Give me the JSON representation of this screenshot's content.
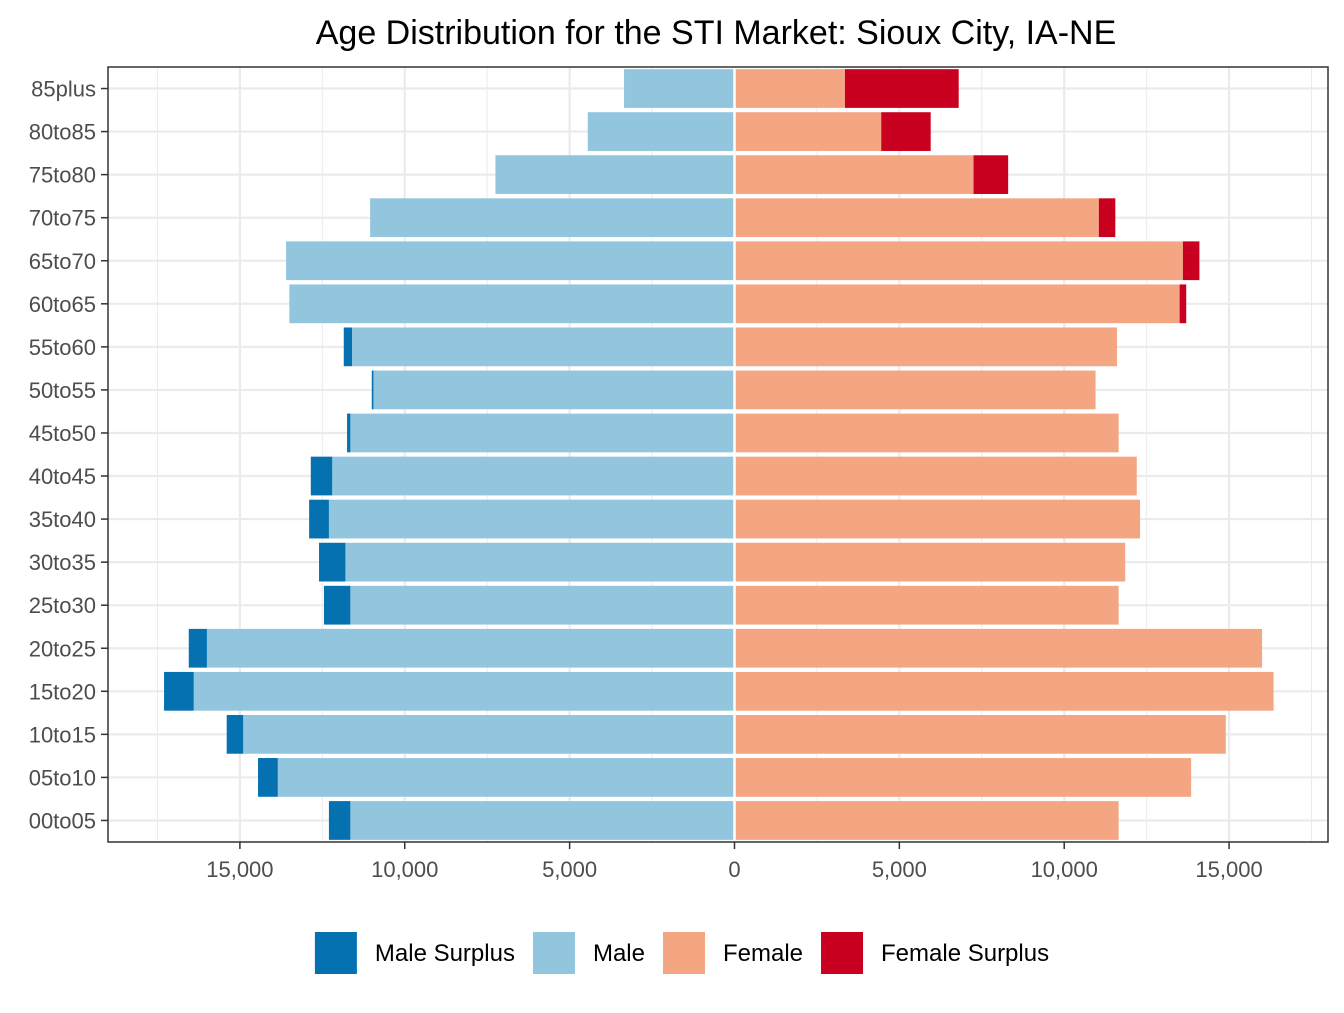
{
  "chart_data": {
    "type": "bar",
    "orientation": "horizontal",
    "title": "Age Distribution for the STI Market: Sioux City, IA-NE",
    "xlabel": "",
    "ylabel": "",
    "xlim": [
      -19000,
      18000
    ],
    "x_ticks": [
      -15000,
      -10000,
      -5000,
      0,
      5000,
      10000,
      15000
    ],
    "x_tick_labels": [
      "15,000",
      "10,000",
      "5,000",
      "0",
      "5,000",
      "10,000",
      "15,000"
    ],
    "grid": true,
    "legend_position": "bottom",
    "categories": [
      "00to05",
      "05to10",
      "10to15",
      "15to20",
      "20to25",
      "25to30",
      "30to35",
      "35to40",
      "40to45",
      "45to50",
      "50to55",
      "55to60",
      "60to65",
      "65to70",
      "70to75",
      "75to80",
      "80to85",
      "85plus"
    ],
    "series": [
      {
        "name": "Male Surplus",
        "color": "#0571b0",
        "side": "left",
        "values": [
          650,
          600,
          500,
          900,
          550,
          800,
          800,
          600,
          650,
          100,
          50,
          250,
          0,
          0,
          0,
          0,
          0,
          0
        ]
      },
      {
        "name": "Male",
        "color": "#92c5de",
        "side": "left",
        "values": [
          11650,
          13850,
          14900,
          16400,
          16000,
          11650,
          11800,
          12300,
          12200,
          11650,
          10950,
          11600,
          13500,
          13600,
          11050,
          7250,
          4450,
          3350
        ]
      },
      {
        "name": "Female",
        "color": "#f4a582",
        "side": "right",
        "values": [
          11650,
          13850,
          14900,
          16350,
          16000,
          11650,
          11850,
          12300,
          12200,
          11650,
          10950,
          11600,
          13500,
          13600,
          11050,
          7250,
          4450,
          3350
        ]
      },
      {
        "name": "Female Surplus",
        "color": "#ca0020",
        "side": "right",
        "values": [
          0,
          0,
          0,
          0,
          0,
          0,
          0,
          0,
          0,
          0,
          0,
          0,
          200,
          500,
          500,
          1050,
          1500,
          3450
        ]
      }
    ]
  }
}
